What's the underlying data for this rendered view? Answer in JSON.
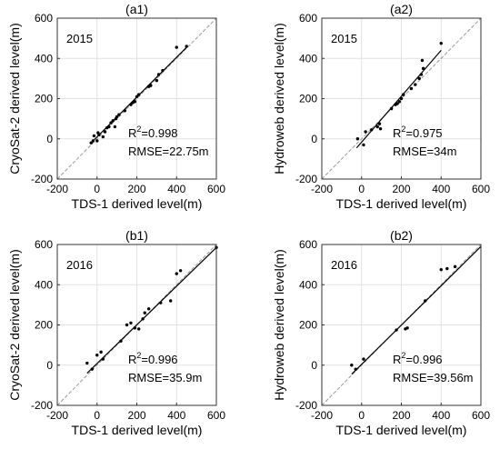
{
  "chart_data": [
    {
      "type": "scatter",
      "title": "(a1)",
      "year_label": "2015",
      "xlabel": "TDS-1 derived level(m)",
      "ylabel": "CryoSat-2 derived level(m)",
      "xlim": [
        -200,
        600
      ],
      "ylim": [
        -200,
        600
      ],
      "xticks": [
        -200,
        0,
        200,
        400,
        600
      ],
      "yticks": [
        -200,
        0,
        200,
        400,
        600
      ],
      "grid": true,
      "r2_label": "R",
      "r2_value": "=0.998",
      "rmse_label": "RMSE=22.75m",
      "fit_line": [
        [
          -35,
          -25
        ],
        [
          450,
          455
        ]
      ],
      "points": [
        [
          -30,
          -20
        ],
        [
          -20,
          -10
        ],
        [
          -15,
          15
        ],
        [
          0,
          -10
        ],
        [
          5,
          30
        ],
        [
          10,
          20
        ],
        [
          30,
          10
        ],
        [
          40,
          35
        ],
        [
          50,
          55
        ],
        [
          60,
          60
        ],
        [
          70,
          80
        ],
        [
          80,
          90
        ],
        [
          90,
          60
        ],
        [
          95,
          100
        ],
        [
          100,
          110
        ],
        [
          110,
          120
        ],
        [
          140,
          140
        ],
        [
          170,
          170
        ],
        [
          180,
          180
        ],
        [
          190,
          185
        ],
        [
          200,
          210
        ],
        [
          210,
          220
        ],
        [
          260,
          260
        ],
        [
          270,
          265
        ],
        [
          300,
          290
        ],
        [
          310,
          320
        ],
        [
          330,
          340
        ],
        [
          400,
          455
        ],
        [
          450,
          460
        ]
      ]
    },
    {
      "type": "scatter",
      "title": "(a2)",
      "year_label": "2015",
      "xlabel": "TDS-1 derived level(m)",
      "ylabel": "Hydroweb derived level(m)",
      "xlim": [
        -200,
        600
      ],
      "ylim": [
        -200,
        600
      ],
      "xticks": [
        -200,
        0,
        200,
        400,
        600
      ],
      "yticks": [
        -200,
        0,
        200,
        400,
        600
      ],
      "grid": true,
      "r2_label": "R",
      "r2_value": "=0.975",
      "rmse_label": "RMSE=34m",
      "fit_line": [
        [
          -25,
          -45
        ],
        [
          400,
          440
        ]
      ],
      "points": [
        [
          -20,
          0
        ],
        [
          10,
          -30
        ],
        [
          20,
          35
        ],
        [
          50,
          45
        ],
        [
          80,
          60
        ],
        [
          90,
          75
        ],
        [
          95,
          50
        ],
        [
          150,
          150
        ],
        [
          170,
          170
        ],
        [
          180,
          175
        ],
        [
          190,
          185
        ],
        [
          200,
          200
        ],
        [
          210,
          220
        ],
        [
          250,
          250
        ],
        [
          270,
          270
        ],
        [
          290,
          300
        ],
        [
          300,
          320
        ],
        [
          305,
          390
        ],
        [
          310,
          350
        ],
        [
          400,
          475
        ]
      ]
    },
    {
      "type": "scatter",
      "title": "(b1)",
      "year_label": "2016",
      "xlabel": "TDS-1 derived level(m)",
      "ylabel": "CryoSat-2 derived level(m)",
      "xlim": [
        -200,
        600
      ],
      "ylim": [
        -200,
        600
      ],
      "xticks": [
        -200,
        0,
        200,
        400,
        600
      ],
      "yticks": [
        -200,
        0,
        200,
        400,
        600
      ],
      "grid": true,
      "r2_label": "R",
      "r2_value": "=0.996",
      "rmse_label": "RMSE=35.9m",
      "fit_line": [
        [
          -50,
          -40
        ],
        [
          600,
          585
        ]
      ],
      "points": [
        [
          -50,
          10
        ],
        [
          -25,
          -20
        ],
        [
          0,
          50
        ],
        [
          20,
          65
        ],
        [
          30,
          30
        ],
        [
          120,
          120
        ],
        [
          150,
          200
        ],
        [
          170,
          210
        ],
        [
          190,
          185
        ],
        [
          210,
          180
        ],
        [
          230,
          230
        ],
        [
          240,
          260
        ],
        [
          260,
          280
        ],
        [
          320,
          310
        ],
        [
          370,
          320
        ],
        [
          400,
          455
        ],
        [
          420,
          470
        ],
        [
          600,
          585
        ]
      ]
    },
    {
      "type": "scatter",
      "title": "(b2)",
      "year_label": "2016",
      "xlabel": "TDS-1 derived level(m)",
      "ylabel": "Hydroweb derived level(m)",
      "xlim": [
        -200,
        600
      ],
      "ylim": [
        -200,
        600
      ],
      "xticks": [
        -200,
        0,
        200,
        400,
        600
      ],
      "yticks": [
        -200,
        0,
        200,
        400,
        600
      ],
      "grid": true,
      "r2_label": "R",
      "r2_value": "=0.996",
      "rmse_label": "RMSE=39.56m",
      "fit_line": [
        [
          -50,
          -45
        ],
        [
          600,
          590
        ]
      ],
      "points": [
        [
          -50,
          0
        ],
        [
          -30,
          -20
        ],
        [
          10,
          30
        ],
        [
          175,
          175
        ],
        [
          220,
          180
        ],
        [
          230,
          185
        ],
        [
          320,
          320
        ],
        [
          400,
          475
        ],
        [
          430,
          480
        ],
        [
          470,
          490
        ]
      ]
    }
  ]
}
